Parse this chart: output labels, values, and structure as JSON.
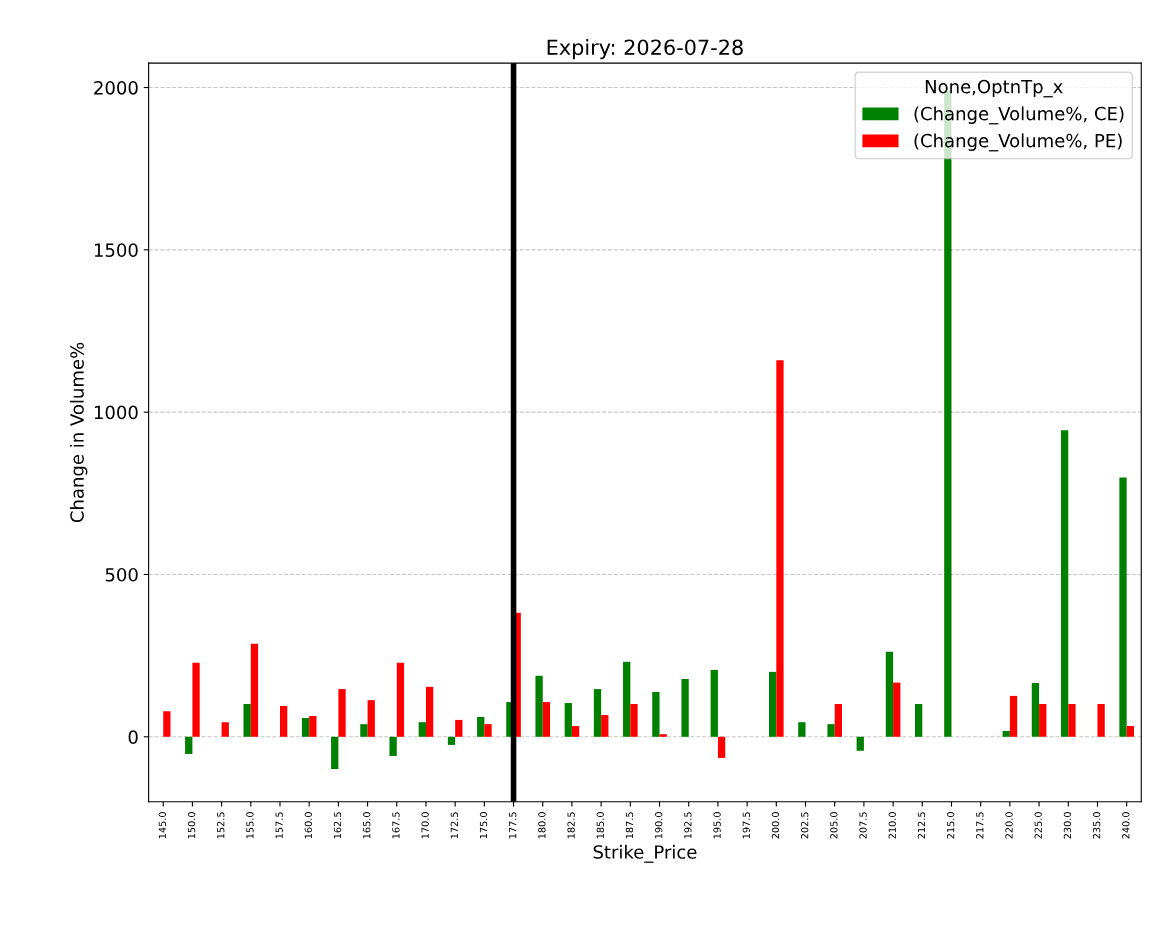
{
  "chart_data": {
    "type": "bar",
    "title": "Expiry: 2026-07-28",
    "xlabel": "Strike_Price",
    "ylabel": "Change in Volume%",
    "legend_title": "None,OptnTp_x",
    "categories": [
      "145.0",
      "150.0",
      "152.5",
      "155.0",
      "157.5",
      "160.0",
      "162.5",
      "165.0",
      "167.5",
      "170.0",
      "172.5",
      "175.0",
      "177.5",
      "180.0",
      "182.5",
      "185.0",
      "187.5",
      "190.0",
      "192.5",
      "195.0",
      "197.5",
      "200.0",
      "202.5",
      "205.0",
      "207.5",
      "210.0",
      "212.5",
      "215.0",
      "217.5",
      "220.0",
      "225.0",
      "230.0",
      "235.0",
      "240.0"
    ],
    "series": [
      {
        "name": "(Change_Volume%, CE)",
        "color": "#008000",
        "values": [
          null,
          -53,
          null,
          101,
          null,
          58,
          -99,
          39,
          -59,
          45,
          -25,
          61,
          107,
          188,
          104,
          147,
          231,
          138,
          178,
          206,
          null,
          200,
          45,
          39,
          -43,
          262,
          101,
          1990,
          null,
          18,
          166,
          944,
          null,
          799
        ]
      },
      {
        "name": "(Change_Volume%, PE)",
        "color": "#ff0000",
        "values": [
          79,
          228,
          45,
          287,
          95,
          64,
          147,
          113,
          228,
          154,
          52,
          39,
          382,
          107,
          33,
          67,
          101,
          8,
          null,
          -65,
          null,
          1160,
          null,
          101,
          null,
          167,
          null,
          null,
          null,
          126,
          101,
          101,
          101,
          33
        ]
      }
    ],
    "ylim": [
      -200,
      2075
    ],
    "yticks": [
      0,
      500,
      1000,
      1500,
      2000
    ],
    "grid": "y",
    "legend": "top right",
    "ref_lines": [
      {
        "axis": "x",
        "value": "177.5",
        "color": "#000000"
      }
    ]
  }
}
